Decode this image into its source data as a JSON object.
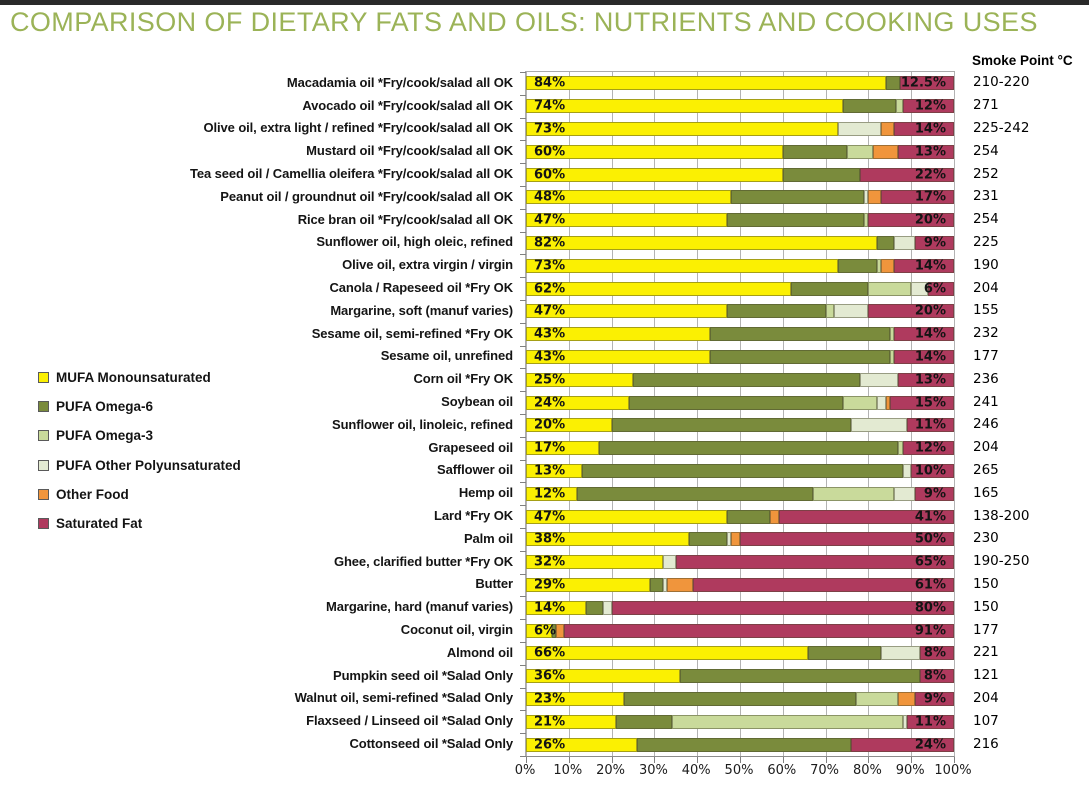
{
  "page": {
    "title": "COMPARISON OF DIETARY FATS AND OILS: NUTRIENTS AND COOKING USES",
    "smoke_point_header": "Smoke Point °C"
  },
  "palette": {
    "mufa": "#FBF002",
    "pufa_omega6": "#7A8B3C",
    "pufa_omega3": "#C9DA9B",
    "pufa_other_poly": "#E3EAD2",
    "other_food": "#F0953C",
    "saturated": "#AF3A5E",
    "title_color": "#9BB357",
    "gridline_color": "#B3B3B3"
  },
  "legend": [
    {
      "key": "mufa",
      "label": "MUFA Monounsaturated"
    },
    {
      "key": "pufa_omega6",
      "label": "PUFA Omega-6"
    },
    {
      "key": "pufa_omega3",
      "label": "PUFA Omega-3"
    },
    {
      "key": "pufa_other_poly",
      "label": "PUFA Other Polyunsaturated"
    },
    {
      "key": "other_food",
      "label": "Other Food"
    },
    {
      "key": "saturated",
      "label": "Saturated Fat"
    }
  ],
  "chart_data": {
    "type": "bar",
    "stacked": true,
    "orientation": "horizontal",
    "title": "COMPARISON OF DIETARY FATS AND OILS: NUTRIENTS AND COOKING USES",
    "xlabel": "",
    "ylabel": "",
    "xlim": [
      0,
      100
    ],
    "grid": true,
    "legend_position": "left",
    "x_axis_ticks": [
      "0%",
      "10%",
      "20%",
      "30%",
      "40%",
      "50%",
      "60%",
      "70%",
      "80%",
      "90%",
      "100%"
    ],
    "series_keys": [
      "mufa",
      "pufa_omega6",
      "pufa_omega3",
      "pufa_other_poly",
      "other_food",
      "saturated"
    ],
    "rows": [
      {
        "label": "Macadamia oil *Fry/cook/salad all OK",
        "mufa_label": "84%",
        "sat_label": "12.5%",
        "smoke_point": "210-220",
        "values": {
          "mufa": 84,
          "pufa_omega6": 3.5,
          "pufa_omega3": 0,
          "pufa_other_poly": 0,
          "other_food": 0,
          "saturated": 12.5
        }
      },
      {
        "label": "Avocado oil *Fry/cook/salad all OK",
        "mufa_label": "74%",
        "sat_label": "12%",
        "smoke_point": "271",
        "values": {
          "mufa": 74,
          "pufa_omega6": 12.5,
          "pufa_omega3": 1.5,
          "pufa_other_poly": 0,
          "other_food": 0,
          "saturated": 12
        }
      },
      {
        "label": "Olive oil, extra light / refined *Fry/cook/salad all OK",
        "mufa_label": "73%",
        "sat_label": "14%",
        "smoke_point": "225-242",
        "values": {
          "mufa": 73,
          "pufa_omega6": 0,
          "pufa_omega3": 0,
          "pufa_other_poly": 10,
          "other_food": 3,
          "saturated": 14
        }
      },
      {
        "label": "Mustard oil *Fry/cook/salad all OK",
        "mufa_label": "60%",
        "sat_label": "13%",
        "smoke_point": "254",
        "values": {
          "mufa": 60,
          "pufa_omega6": 15,
          "pufa_omega3": 6,
          "pufa_other_poly": 0,
          "other_food": 6,
          "saturated": 13
        }
      },
      {
        "label": "Tea seed oil / Camellia oleifera *Fry/cook/salad all OK",
        "mufa_label": "60%",
        "sat_label": "22%",
        "smoke_point": "252",
        "values": {
          "mufa": 60,
          "pufa_omega6": 18,
          "pufa_omega3": 0,
          "pufa_other_poly": 0,
          "other_food": 0,
          "saturated": 22
        }
      },
      {
        "label": "Peanut oil / groundnut oil *Fry/cook/salad all OK",
        "mufa_label": "48%",
        "sat_label": "17%",
        "smoke_point": "231",
        "values": {
          "mufa": 48,
          "pufa_omega6": 31,
          "pufa_omega3": 0,
          "pufa_other_poly": 1,
          "other_food": 3,
          "saturated": 17
        }
      },
      {
        "label": "Rice bran oil *Fry/cook/salad all OK",
        "mufa_label": "47%",
        "sat_label": "20%",
        "smoke_point": "254",
        "values": {
          "mufa": 47,
          "pufa_omega6": 32,
          "pufa_omega3": 1,
          "pufa_other_poly": 0,
          "other_food": 0,
          "saturated": 20
        }
      },
      {
        "label": "Sunflower oil, high oleic, refined",
        "mufa_label": "82%",
        "sat_label": "9%",
        "smoke_point": "225",
        "values": {
          "mufa": 82,
          "pufa_omega6": 4,
          "pufa_omega3": 0,
          "pufa_other_poly": 5,
          "other_food": 0,
          "saturated": 9
        }
      },
      {
        "label": "Olive oil, extra virgin / virgin",
        "mufa_label": "73%",
        "sat_label": "14%",
        "smoke_point": "190",
        "values": {
          "mufa": 73,
          "pufa_omega6": 9,
          "pufa_omega3": 1,
          "pufa_other_poly": 0,
          "other_food": 3,
          "saturated": 14
        }
      },
      {
        "label": "Canola / Rapeseed oil *Fry OK",
        "mufa_label": "62%",
        "sat_label": "6%",
        "smoke_point": "204",
        "values": {
          "mufa": 62,
          "pufa_omega6": 18,
          "pufa_omega3": 10,
          "pufa_other_poly": 4,
          "other_food": 0,
          "saturated": 6
        }
      },
      {
        "label": "Margarine, soft (manuf varies)",
        "mufa_label": "47%",
        "sat_label": "20%",
        "smoke_point": "155",
        "values": {
          "mufa": 47,
          "pufa_omega6": 23,
          "pufa_omega3": 2,
          "pufa_other_poly": 8,
          "other_food": 0,
          "saturated": 20
        }
      },
      {
        "label": "Sesame oil, semi-refined *Fry OK",
        "mufa_label": "43%",
        "sat_label": "14%",
        "smoke_point": "232",
        "values": {
          "mufa": 43,
          "pufa_omega6": 42,
          "pufa_omega3": 1,
          "pufa_other_poly": 0,
          "other_food": 0,
          "saturated": 14
        }
      },
      {
        "label": "Sesame oil, unrefined",
        "mufa_label": "43%",
        "sat_label": "14%",
        "smoke_point": "177",
        "values": {
          "mufa": 43,
          "pufa_omega6": 42,
          "pufa_omega3": 1,
          "pufa_other_poly": 0,
          "other_food": 0,
          "saturated": 14
        }
      },
      {
        "label": "Corn oil *Fry OK",
        "mufa_label": "25%",
        "sat_label": "13%",
        "smoke_point": "236",
        "values": {
          "mufa": 25,
          "pufa_omega6": 53,
          "pufa_omega3": 0,
          "pufa_other_poly": 9,
          "other_food": 0,
          "saturated": 13
        }
      },
      {
        "label": "Soybean oil",
        "mufa_label": "24%",
        "sat_label": "15%",
        "smoke_point": "241",
        "values": {
          "mufa": 24,
          "pufa_omega6": 50,
          "pufa_omega3": 8,
          "pufa_other_poly": 2,
          "other_food": 1,
          "saturated": 15
        }
      },
      {
        "label": "Sunflower oil, linoleic, refined",
        "mufa_label": "20%",
        "sat_label": "11%",
        "smoke_point": "246",
        "values": {
          "mufa": 20,
          "pufa_omega6": 56,
          "pufa_omega3": 0,
          "pufa_other_poly": 13,
          "other_food": 0,
          "saturated": 11
        }
      },
      {
        "label": "Grapeseed oil",
        "mufa_label": "17%",
        "sat_label": "12%",
        "smoke_point": "204",
        "values": {
          "mufa": 17,
          "pufa_omega6": 70,
          "pufa_omega3": 1,
          "pufa_other_poly": 0,
          "other_food": 0,
          "saturated": 12
        }
      },
      {
        "label": "Safflower oil",
        "mufa_label": "13%",
        "sat_label": "10%",
        "smoke_point": "265",
        "values": {
          "mufa": 13,
          "pufa_omega6": 75,
          "pufa_omega3": 0,
          "pufa_other_poly": 2,
          "other_food": 0,
          "saturated": 10
        }
      },
      {
        "label": "Hemp oil",
        "mufa_label": "12%",
        "sat_label": "9%",
        "smoke_point": "165",
        "values": {
          "mufa": 12,
          "pufa_omega6": 55,
          "pufa_omega3": 19,
          "pufa_other_poly": 5,
          "other_food": 0,
          "saturated": 9
        }
      },
      {
        "label": "Lard *Fry OK",
        "mufa_label": "47%",
        "sat_label": "41%",
        "smoke_point": "138-200",
        "values": {
          "mufa": 47,
          "pufa_omega6": 10,
          "pufa_omega3": 0,
          "pufa_other_poly": 0,
          "other_food": 2,
          "saturated": 41
        }
      },
      {
        "label": "Palm oil",
        "mufa_label": "38%",
        "sat_label": "50%",
        "smoke_point": "230",
        "values": {
          "mufa": 38,
          "pufa_omega6": 9,
          "pufa_omega3": 0,
          "pufa_other_poly": 1,
          "other_food": 2,
          "saturated": 50
        }
      },
      {
        "label": "Ghee, clarified butter *Fry OK",
        "mufa_label": "32%",
        "sat_label": "65%",
        "smoke_point": "190-250",
        "values": {
          "mufa": 32,
          "pufa_omega6": 0,
          "pufa_omega3": 0,
          "pufa_other_poly": 3,
          "other_food": 0,
          "saturated": 65
        }
      },
      {
        "label": "Butter",
        "mufa_label": "29%",
        "sat_label": "61%",
        "smoke_point": "150",
        "values": {
          "mufa": 29,
          "pufa_omega6": 3,
          "pufa_omega3": 0,
          "pufa_other_poly": 1,
          "other_food": 6,
          "saturated": 61
        }
      },
      {
        "label": "Margarine, hard (manuf varies)",
        "mufa_label": "14%",
        "sat_label": "80%",
        "smoke_point": "150",
        "values": {
          "mufa": 14,
          "pufa_omega6": 4,
          "pufa_omega3": 0,
          "pufa_other_poly": 2,
          "other_food": 0,
          "saturated": 80
        }
      },
      {
        "label": "Coconut oil, virgin",
        "mufa_label": "6%",
        "sat_label": "91%",
        "smoke_point": "177",
        "values": {
          "mufa": 6,
          "pufa_omega6": 1,
          "pufa_omega3": 0,
          "pufa_other_poly": 0,
          "other_food": 2,
          "saturated": 91
        }
      },
      {
        "label": "Almond oil",
        "mufa_label": "66%",
        "sat_label": "8%",
        "smoke_point": "221",
        "values": {
          "mufa": 66,
          "pufa_omega6": 17,
          "pufa_omega3": 0,
          "pufa_other_poly": 9,
          "other_food": 0,
          "saturated": 8
        }
      },
      {
        "label": "Pumpkin seed oil *Salad Only",
        "mufa_label": "36%",
        "sat_label": "8%",
        "smoke_point": "121",
        "values": {
          "mufa": 36,
          "pufa_omega6": 56,
          "pufa_omega3": 0,
          "pufa_other_poly": 0,
          "other_food": 0,
          "saturated": 8
        }
      },
      {
        "label": "Walnut oil, semi-refined *Salad Only",
        "mufa_label": "23%",
        "sat_label": "9%",
        "smoke_point": "204",
        "values": {
          "mufa": 23,
          "pufa_omega6": 54,
          "pufa_omega3": 10,
          "pufa_other_poly": 0,
          "other_food": 4,
          "saturated": 9
        }
      },
      {
        "label": "Flaxseed / Linseed oil *Salad Only",
        "mufa_label": "21%",
        "sat_label": "11%",
        "smoke_point": "107",
        "values": {
          "mufa": 21,
          "pufa_omega6": 13,
          "pufa_omega3": 54,
          "pufa_other_poly": 1,
          "other_food": 0,
          "saturated": 11
        }
      },
      {
        "label": "Cottonseed oil *Salad Only",
        "mufa_label": "26%",
        "sat_label": "24%",
        "smoke_point": "216",
        "values": {
          "mufa": 26,
          "pufa_omega6": 50,
          "pufa_omega3": 0,
          "pufa_other_poly": 0,
          "other_food": 0,
          "saturated": 24
        }
      }
    ]
  }
}
